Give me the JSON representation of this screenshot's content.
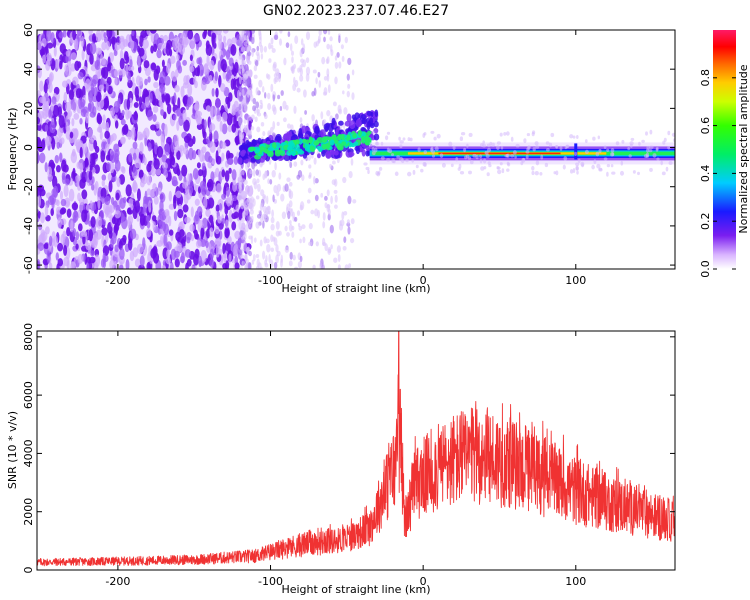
{
  "title": "GN02.2023.237.07.46.E27",
  "chart_data": [
    {
      "type": "heatmap",
      "xlabel": "Height of straight line (km)",
      "ylabel": "Frequency (Hz)",
      "xlim": [
        -253,
        165
      ],
      "ylim": [
        -62,
        60
      ],
      "xticks": [
        -200,
        -100,
        0,
        100
      ],
      "yticks": [
        -60,
        -40,
        -20,
        0,
        20,
        40,
        60
      ],
      "colorbar": {
        "label": "Normalized spectral amplitude",
        "range": [
          0,
          1
        ],
        "ticks": [
          0.0,
          0.2,
          0.4,
          0.6,
          0.8
        ]
      },
      "features": [
        {
          "name": "broadband noise",
          "x_range": [
            -253,
            -110
          ],
          "freq_range": [
            -62,
            60
          ]
        },
        {
          "name": "rising band",
          "x_range": [
            -120,
            -30
          ],
          "freq_center_start": -3,
          "freq_center_end": 8
        },
        {
          "name": "strong band",
          "x_range": [
            -35,
            165
          ],
          "freq_center": -3
        }
      ]
    },
    {
      "type": "line",
      "xlabel": "Height of straight line (km)",
      "ylabel": "SNR (10 * v/v)",
      "xlim": [
        -253,
        165
      ],
      "ylim": [
        0,
        8200
      ],
      "xticks": [
        -200,
        -100,
        0,
        100
      ],
      "yticks": [
        0,
        2000,
        4000,
        6000,
        8000
      ],
      "color": "#f03232",
      "envelope_x": [
        -253,
        -200,
        -150,
        -110,
        -90,
        -70,
        -50,
        -35,
        -25,
        -18,
        -15,
        -12,
        -8,
        -5,
        0,
        10,
        20,
        30,
        40,
        50,
        60,
        80,
        100,
        120,
        140,
        165
      ],
      "envelope_y": [
        250,
        280,
        330,
        450,
        700,
        900,
        1100,
        1500,
        2800,
        3700,
        5000,
        1600,
        2500,
        3000,
        3300,
        3600,
        3900,
        4000,
        4050,
        3900,
        3700,
        3300,
        2800,
        2400,
        2100,
        1700
      ],
      "peaks": [
        {
          "x": -16,
          "y": 8200
        },
        {
          "x": -15,
          "y": 6200
        }
      ]
    }
  ]
}
